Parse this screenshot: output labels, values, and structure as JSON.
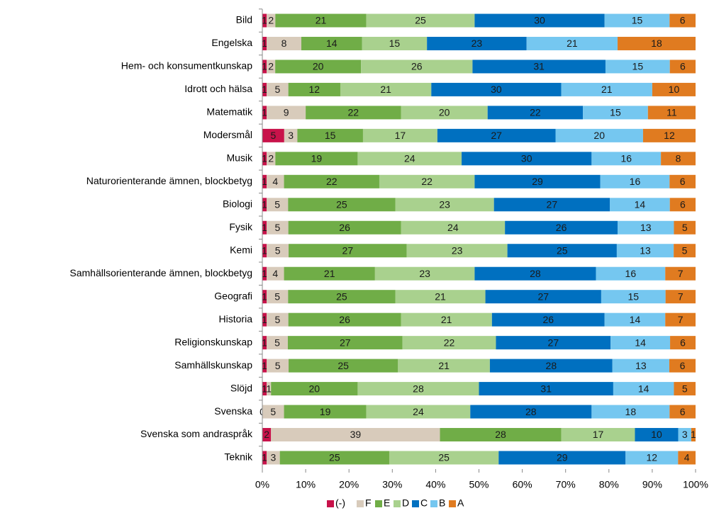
{
  "chart_data": {
    "type": "bar",
    "orientation": "horizontal",
    "stacking": "percent",
    "categories": [
      "Bild",
      "Engelska",
      "Hem- och konsumentkunskap",
      "Idrott och hälsa",
      "Matematik",
      "Modersmål",
      "Musik",
      "Naturorienterande ämnen, blockbetyg",
      "Biologi",
      "Fysik",
      "Kemi",
      "Samhällsorienterande ämnen, blockbetyg",
      "Geografi",
      "Historia",
      "Religionskunskap",
      "Samhällskunskap",
      "Slöjd",
      "Svenska",
      "Svenska som andraspråk",
      "Teknik"
    ],
    "series": [
      {
        "name": "(-)",
        "color": "#c8124a",
        "values": [
          1,
          1,
          1,
          1,
          1,
          5,
          1,
          1,
          1,
          1,
          1,
          1,
          1,
          1,
          1,
          1,
          1,
          0,
          2,
          1
        ]
      },
      {
        "name": "F",
        "color": "#d8cbbb",
        "values": [
          2,
          8,
          2,
          5,
          9,
          3,
          2,
          4,
          5,
          5,
          5,
          4,
          5,
          5,
          5,
          5,
          1,
          5,
          39,
          3
        ]
      },
      {
        "name": "E",
        "color": "#70ad47",
        "values": [
          21,
          14,
          20,
          12,
          22,
          15,
          19,
          22,
          25,
          26,
          27,
          21,
          25,
          26,
          27,
          25,
          20,
          19,
          28,
          25
        ]
      },
      {
        "name": "D",
        "color": "#a9d18e",
        "values": [
          25,
          15,
          26,
          21,
          20,
          17,
          24,
          22,
          23,
          24,
          23,
          23,
          21,
          21,
          22,
          21,
          28,
          24,
          17,
          25
        ]
      },
      {
        "name": "C",
        "color": "#0070c0",
        "values": [
          30,
          23,
          31,
          30,
          22,
          27,
          30,
          29,
          27,
          26,
          25,
          28,
          27,
          26,
          27,
          28,
          31,
          28,
          10,
          29
        ]
      },
      {
        "name": "B",
        "color": "#75c7f0",
        "values": [
          15,
          21,
          15,
          21,
          15,
          20,
          16,
          16,
          14,
          13,
          13,
          16,
          15,
          14,
          14,
          13,
          14,
          18,
          3,
          12
        ]
      },
      {
        "name": "A",
        "color": "#e07b20",
        "values": [
          6,
          18,
          6,
          10,
          11,
          12,
          8,
          6,
          6,
          5,
          5,
          7,
          7,
          7,
          6,
          6,
          5,
          6,
          1,
          4
        ]
      }
    ],
    "xlim": [
      0,
      100
    ],
    "xticks": [
      {
        "value": 0,
        "label": "0%"
      },
      {
        "value": 10,
        "label": "10%"
      },
      {
        "value": 20,
        "label": "20%"
      },
      {
        "value": 30,
        "label": "30%"
      },
      {
        "value": 40,
        "label": "40%"
      },
      {
        "value": 50,
        "label": "50%"
      },
      {
        "value": 60,
        "label": "60%"
      },
      {
        "value": 70,
        "label": "70%"
      },
      {
        "value": 80,
        "label": "80%"
      },
      {
        "value": 90,
        "label": "90%"
      },
      {
        "value": 100,
        "label": "100%"
      }
    ],
    "legend": "bottom"
  }
}
